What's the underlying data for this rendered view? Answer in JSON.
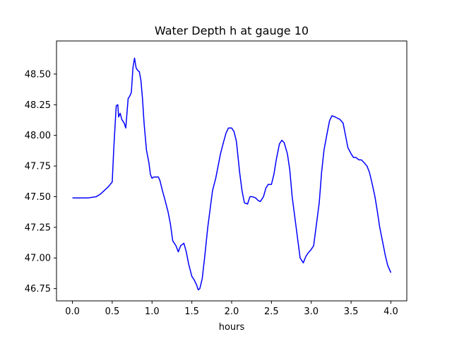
{
  "chart_data": {
    "type": "line",
    "title": "Water Depth h at gauge 10",
    "xlabel": "hours",
    "ylabel": "",
    "xlim": [
      -0.2,
      4.2
    ],
    "ylim": [
      46.65,
      48.77
    ],
    "xticks": [
      0.0,
      0.5,
      1.0,
      1.5,
      2.0,
      2.5,
      3.0,
      3.5,
      4.0
    ],
    "xtick_labels": [
      "0.0",
      "0.5",
      "1.0",
      "1.5",
      "2.0",
      "2.5",
      "3.0",
      "3.5",
      "4.0"
    ],
    "yticks": [
      46.75,
      47.0,
      47.25,
      47.5,
      47.75,
      48.0,
      48.25,
      48.5
    ],
    "ytick_labels": [
      "46.75",
      "47.00",
      "47.25",
      "47.50",
      "47.75",
      "48.00",
      "48.25",
      "48.50"
    ],
    "grid": false,
    "legend": "none",
    "series": [
      {
        "color": "#0000ff",
        "x": [
          0.0,
          0.1,
          0.2,
          0.3,
          0.35,
          0.4,
          0.45,
          0.5,
          0.52,
          0.55,
          0.57,
          0.58,
          0.6,
          0.62,
          0.65,
          0.67,
          0.7,
          0.72,
          0.74,
          0.76,
          0.78,
          0.8,
          0.82,
          0.84,
          0.86,
          0.88,
          0.9,
          0.93,
          0.96,
          0.98,
          1.0,
          1.02,
          1.05,
          1.08,
          1.1,
          1.13,
          1.16,
          1.2,
          1.23,
          1.26,
          1.3,
          1.33,
          1.36,
          1.4,
          1.43,
          1.46,
          1.5,
          1.53,
          1.56,
          1.58,
          1.6,
          1.63,
          1.66,
          1.7,
          1.73,
          1.76,
          1.8,
          1.83,
          1.86,
          1.9,
          1.93,
          1.96,
          2.0,
          2.03,
          2.06,
          2.1,
          2.13,
          2.16,
          2.2,
          2.23,
          2.26,
          2.3,
          2.33,
          2.36,
          2.4,
          2.43,
          2.46,
          2.5,
          2.53,
          2.56,
          2.6,
          2.63,
          2.66,
          2.7,
          2.73,
          2.76,
          2.8,
          2.83,
          2.86,
          2.9,
          2.93,
          2.96,
          3.0,
          3.03,
          3.06,
          3.1,
          3.13,
          3.16,
          3.2,
          3.23,
          3.26,
          3.3,
          3.33,
          3.36,
          3.4,
          3.43,
          3.46,
          3.5,
          3.53,
          3.56,
          3.6,
          3.63,
          3.66,
          3.7,
          3.73,
          3.76,
          3.8,
          3.83,
          3.86,
          3.9,
          3.93,
          3.96,
          4.0
        ],
        "y": [
          47.49,
          47.49,
          47.49,
          47.5,
          47.52,
          47.55,
          47.58,
          47.62,
          47.9,
          48.24,
          48.25,
          48.15,
          48.18,
          48.13,
          48.1,
          48.06,
          48.3,
          48.32,
          48.35,
          48.55,
          48.63,
          48.55,
          48.53,
          48.52,
          48.45,
          48.3,
          48.1,
          47.88,
          47.78,
          47.68,
          47.65,
          47.66,
          47.66,
          47.66,
          47.63,
          47.55,
          47.48,
          47.38,
          47.28,
          47.14,
          47.1,
          47.05,
          47.1,
          47.12,
          47.05,
          46.95,
          46.85,
          46.82,
          46.78,
          46.74,
          46.75,
          46.83,
          47.0,
          47.25,
          47.4,
          47.55,
          47.65,
          47.75,
          47.85,
          47.95,
          48.02,
          48.06,
          48.06,
          48.03,
          47.95,
          47.7,
          47.55,
          47.45,
          47.44,
          47.5,
          47.5,
          47.49,
          47.47,
          47.46,
          47.5,
          47.57,
          47.6,
          47.6,
          47.68,
          47.8,
          47.93,
          47.96,
          47.94,
          47.85,
          47.72,
          47.5,
          47.3,
          47.15,
          47.0,
          46.96,
          47.01,
          47.04,
          47.07,
          47.1,
          47.25,
          47.45,
          47.7,
          47.88,
          48.02,
          48.12,
          48.16,
          48.15,
          48.14,
          48.13,
          48.1,
          48.0,
          47.9,
          47.85,
          47.82,
          47.82,
          47.8,
          47.8,
          47.78,
          47.75,
          47.7,
          47.62,
          47.5,
          47.38,
          47.25,
          47.12,
          47.02,
          46.94,
          46.88
        ]
      }
    ]
  }
}
